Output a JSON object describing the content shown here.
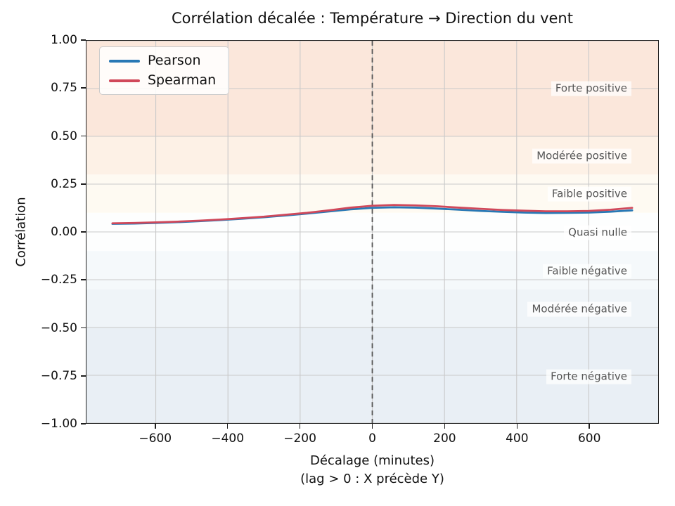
{
  "chart_data": {
    "type": "line",
    "title": "Corrélation décalée : Température → Direction du vent",
    "ylabel": "Corrélation",
    "xlabel_line1": "Décalage (minutes)",
    "xlabel_line2": "(lag > 0 : X précède Y)",
    "xlim": [
      -792,
      792
    ],
    "ylim": [
      -1.0,
      1.0
    ],
    "x_ticks": [
      -600,
      -400,
      -200,
      0,
      200,
      400,
      600
    ],
    "y_ticks": [
      1.0,
      0.75,
      0.5,
      0.25,
      0.0,
      -0.25,
      -0.5,
      -0.75,
      -1.0
    ],
    "grid": true,
    "grid_color": "#c9c9c9",
    "legend_position": "upper-left",
    "zero_lag_line": {
      "x": 0,
      "style": "dashed",
      "color": "#555555"
    },
    "x": [
      -720,
      -660,
      -600,
      -540,
      -480,
      -420,
      -360,
      -300,
      -240,
      -180,
      -120,
      -60,
      0,
      60,
      120,
      180,
      240,
      300,
      360,
      420,
      480,
      540,
      600,
      660,
      720
    ],
    "series": [
      {
        "name": "Pearson",
        "color": "#2878b5",
        "values": [
          0.042,
          0.044,
          0.047,
          0.051,
          0.056,
          0.062,
          0.069,
          0.077,
          0.086,
          0.096,
          0.107,
          0.118,
          0.126,
          0.129,
          0.127,
          0.122,
          0.116,
          0.11,
          0.105,
          0.101,
          0.099,
          0.1,
          0.101,
          0.106,
          0.113
        ]
      },
      {
        "name": "Spearman",
        "color": "#d0485a",
        "values": [
          0.045,
          0.047,
          0.05,
          0.054,
          0.059,
          0.065,
          0.072,
          0.08,
          0.09,
          0.1,
          0.113,
          0.127,
          0.137,
          0.141,
          0.139,
          0.134,
          0.127,
          0.121,
          0.115,
          0.111,
          0.108,
          0.108,
          0.11,
          0.116,
          0.126
        ]
      }
    ],
    "zones": [
      {
        "label": "Forte positive",
        "from": 0.5,
        "to": 1.0,
        "color": "#fbe7db",
        "label_y": 0.75
      },
      {
        "label": "Modérée positive",
        "from": 0.3,
        "to": 0.5,
        "color": "#fdf1e6",
        "label_y": 0.4
      },
      {
        "label": "Faible positive",
        "from": 0.1,
        "to": 0.3,
        "color": "#fefaf2",
        "label_y": 0.2
      },
      {
        "label": "Quasi nulle",
        "from": -0.1,
        "to": 0.1,
        "color": "#fdfefe",
        "label_y": 0.0
      },
      {
        "label": "Faible négative",
        "from": -0.3,
        "to": -0.1,
        "color": "#f5f9fb",
        "label_y": -0.2
      },
      {
        "label": "Modérée négative",
        "from": -0.5,
        "to": -0.3,
        "color": "#eff4f8",
        "label_y": -0.4
      },
      {
        "label": "Forte négative",
        "from": -1.0,
        "to": -0.5,
        "color": "#e9eff5",
        "label_y": -0.75
      }
    ]
  }
}
